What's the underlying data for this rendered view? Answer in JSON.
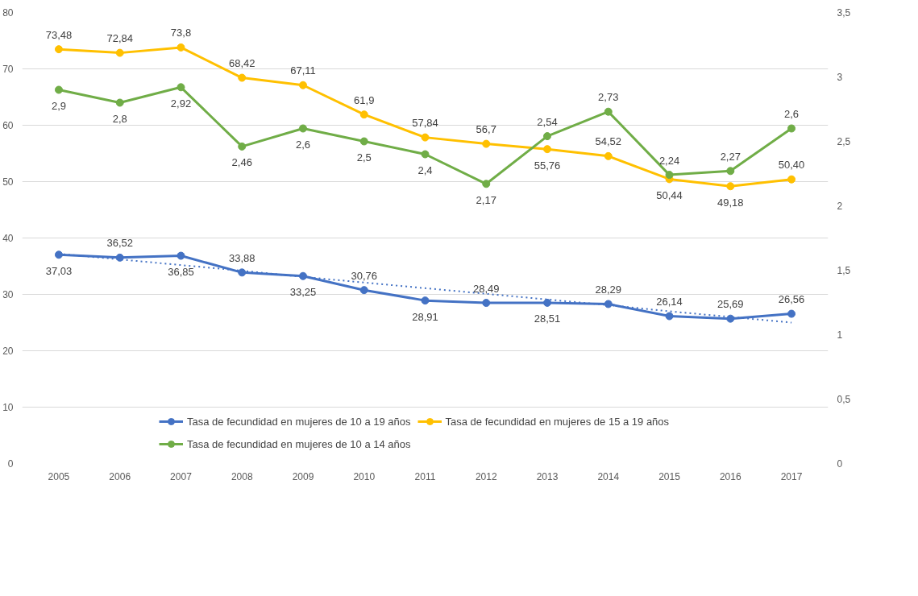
{
  "chart_data": {
    "type": "line",
    "categories": [
      "2005",
      "2006",
      "2007",
      "2008",
      "2009",
      "2010",
      "2011",
      "2012",
      "2013",
      "2014",
      "2015",
      "2016",
      "2017"
    ],
    "series": [
      {
        "name": "Tasa de fecundidad en mujeres de 10 a 19 años",
        "color": "#4472c4",
        "values": [
          37.03,
          36.52,
          36.85,
          33.88,
          33.25,
          30.76,
          28.91,
          28.49,
          28.51,
          28.29,
          26.14,
          25.69,
          26.56
        ],
        "value_labels": [
          "37,03",
          "36,52",
          "36,85",
          "33,88",
          "33,25",
          "30,76",
          "28,91",
          "28,49",
          "28,51",
          "28,29",
          "26,14",
          "25,69",
          "26,56"
        ]
      },
      {
        "name": "Tasa de fecundidad en mujeres de 15 a 19 años",
        "color": "#ffc000",
        "values": [
          73.48,
          72.84,
          73.8,
          68.42,
          67.11,
          61.9,
          57.84,
          56.7,
          55.76,
          54.52,
          50.44,
          49.18,
          50.4
        ],
        "value_labels": [
          "73,48",
          "72,84",
          "73,8",
          "68,42",
          "67,11",
          "61,9",
          "57,84",
          "56,7",
          "55,76",
          "54,52",
          "50,44",
          "49,18",
          "50,40"
        ]
      },
      {
        "name": "Tasa de fecundidad en mujeres de 10 a 14 años",
        "color": "#70ad47",
        "axis": "y2",
        "values": [
          2.9,
          2.8,
          2.92,
          2.46,
          2.6,
          2.5,
          2.4,
          2.17,
          2.54,
          2.73,
          2.24,
          2.27,
          2.6
        ],
        "value_labels": [
          "2,9",
          "2,8",
          "2,92",
          "2,46",
          "2,6",
          "2,5",
          "2,4",
          "2,17",
          "2,54",
          "2,73",
          "2,24",
          "2,27",
          "2,6"
        ]
      },
      {
        "type": "line",
        "color": "#4472c4",
        "line_style": "dotted",
        "marker": "none",
        "values": [
          37.2,
          36.2,
          35.2,
          34.2,
          33.1,
          32.1,
          31.1,
          30.1,
          29.1,
          28.1,
          27.0,
          26.0,
          25.0
        ]
      }
    ],
    "ylim": [
      0,
      80
    ],
    "yticks": [
      0,
      10,
      20,
      30,
      40,
      50,
      60,
      70,
      80
    ],
    "y2lim": [
      0,
      3.5
    ],
    "y2ticks": [
      0,
      {
        "value": 0.5,
        "label": "0,5"
      },
      1,
      {
        "value": 1.5,
        "label": "1,5"
      },
      2,
      {
        "value": 2.5,
        "label": "2,5"
      },
      3,
      {
        "value": 3.5,
        "label": "3,5"
      }
    ],
    "grid": "y",
    "legend": "bottom",
    "marker": "circle",
    "line_style": "solid"
  }
}
